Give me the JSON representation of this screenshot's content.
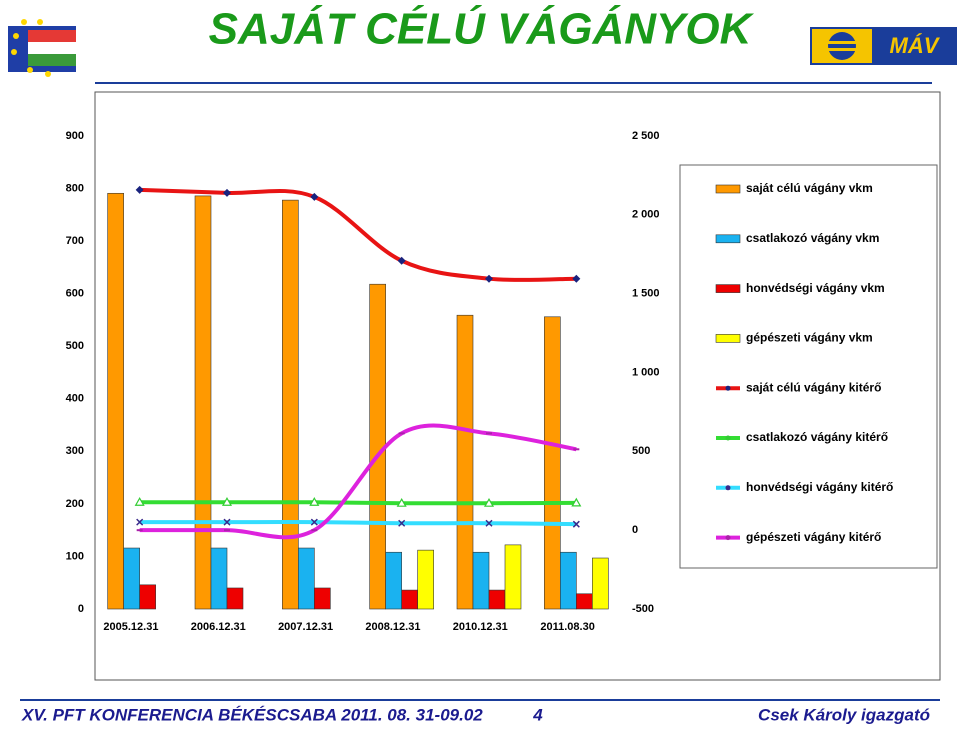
{
  "header": {
    "title": "SAJÁT CÉLÚ VÁGÁNYOK",
    "logo_text": "MÁV"
  },
  "chart_data": {
    "type": "combo",
    "categories": [
      "2005.12.31",
      "2006.12.31",
      "2007.12.31",
      "2008.12.31",
      "2010.12.31",
      "2011.08.30"
    ],
    "ylim": [
      0,
      900
    ],
    "yticks": [
      0,
      100,
      200,
      300,
      400,
      500,
      600,
      700,
      800,
      900
    ],
    "y2lim": [
      -500,
      2500
    ],
    "y2ticks": [
      -500,
      0,
      500,
      {
        "value": 1000,
        "label": "1 000"
      },
      {
        "value": 1500,
        "label": "1 500"
      },
      {
        "value": 2000,
        "label": "2 000"
      },
      {
        "value": 2500,
        "label": "2 500"
      }
    ],
    "grid": false,
    "legend": "right",
    "series": [
      {
        "name": "saját célú vágány vkm",
        "type": "bar",
        "color": "#ff9900",
        "values": [
          791,
          786,
          778,
          618,
          559,
          556
        ]
      },
      {
        "name": "csatlakozó vágány vkm",
        "type": "bar",
        "color": "#1ab2f0",
        "values": [
          116,
          116,
          116,
          108,
          108,
          108
        ]
      },
      {
        "name": "honvédségi vágány vkm",
        "type": "bar",
        "color": "#ee0000",
        "values": [
          46,
          40,
          40,
          36,
          36,
          29
        ]
      },
      {
        "name": "gépészeti vágány vkm",
        "type": "bar",
        "color": "#ffff00",
        "values": [
          null,
          null,
          null,
          112,
          122,
          97
        ]
      },
      {
        "name": "saját célú vágány kitérő",
        "type": "line",
        "axis": "y2",
        "color": "#e81414",
        "marker": "diamond",
        "marker_color": "#1a237e",
        "values": [
          2158,
          2139,
          2114,
          1709,
          1595,
          1595
        ]
      },
      {
        "name": "csatlakozó vágány kitérő",
        "type": "line",
        "axis": "y2",
        "color": "#33dd33",
        "marker": "triangle",
        "marker_color": "#33cc33",
        "values": [
          177,
          177,
          177,
          171,
          171,
          173
        ]
      },
      {
        "name": "honvédségi vágány kitérő",
        "type": "line",
        "axis": "y2",
        "color": "#33ddff",
        "marker": "x",
        "marker_color": "#3a2a8a",
        "values": [
          51,
          51,
          51,
          44,
          44,
          38
        ]
      },
      {
        "name": "gépészeti vágány kitérő",
        "type": "line",
        "axis": "y2",
        "color": "#dd22dd",
        "marker": "dash",
        "marker_color": "#aa22aa",
        "values": [
          0,
          0,
          0,
          614,
          614,
          513
        ]
      }
    ]
  },
  "footer": {
    "event": "XV. PFT KONFERENCIA  BÉKÉSCSABA  2011. 08. 31-09.02",
    "page": "4",
    "author": "Csek Károly igazgató"
  }
}
